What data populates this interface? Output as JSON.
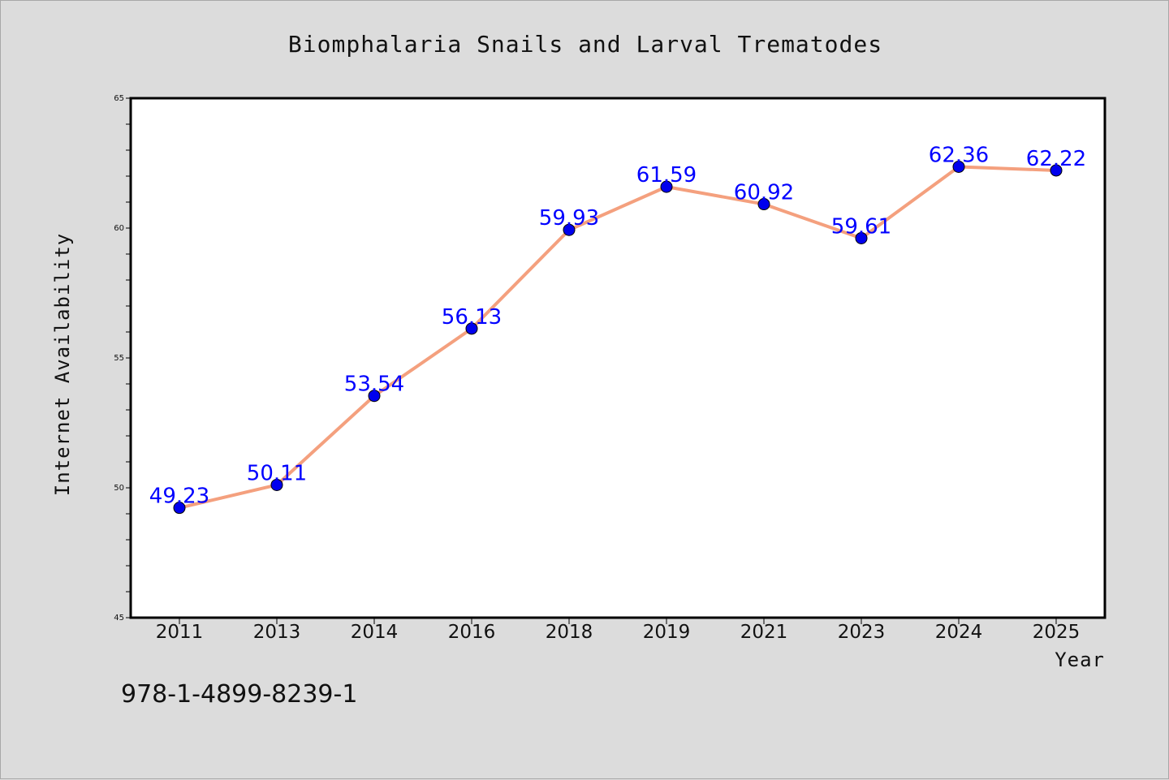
{
  "footer_code": "978-1-4899-8239-1",
  "chart_data": {
    "type": "line",
    "title": "Biomphalaria Snails and Larval Trematodes",
    "xlabel": "Year",
    "ylabel": "Internet Availability",
    "categories": [
      "2011",
      "2013",
      "2014",
      "2016",
      "2018",
      "2019",
      "2021",
      "2023",
      "2024",
      "2025"
    ],
    "values": [
      49.23,
      50.11,
      53.54,
      56.13,
      59.93,
      61.59,
      60.92,
      59.61,
      62.36,
      62.22
    ],
    "value_labels": [
      "49.23",
      "50.11",
      "53.54",
      "56.13",
      "59.93",
      "61.59",
      "60.92",
      "59.61",
      "62.36",
      "62.22"
    ],
    "ylim": [
      45,
      65
    ],
    "yticks": [
      "45",
      "50",
      "55",
      "60",
      "65"
    ],
    "grid": false,
    "line_color": "#f4a07e",
    "marker_color": "#0000ee",
    "label_color": "#0000ff"
  }
}
